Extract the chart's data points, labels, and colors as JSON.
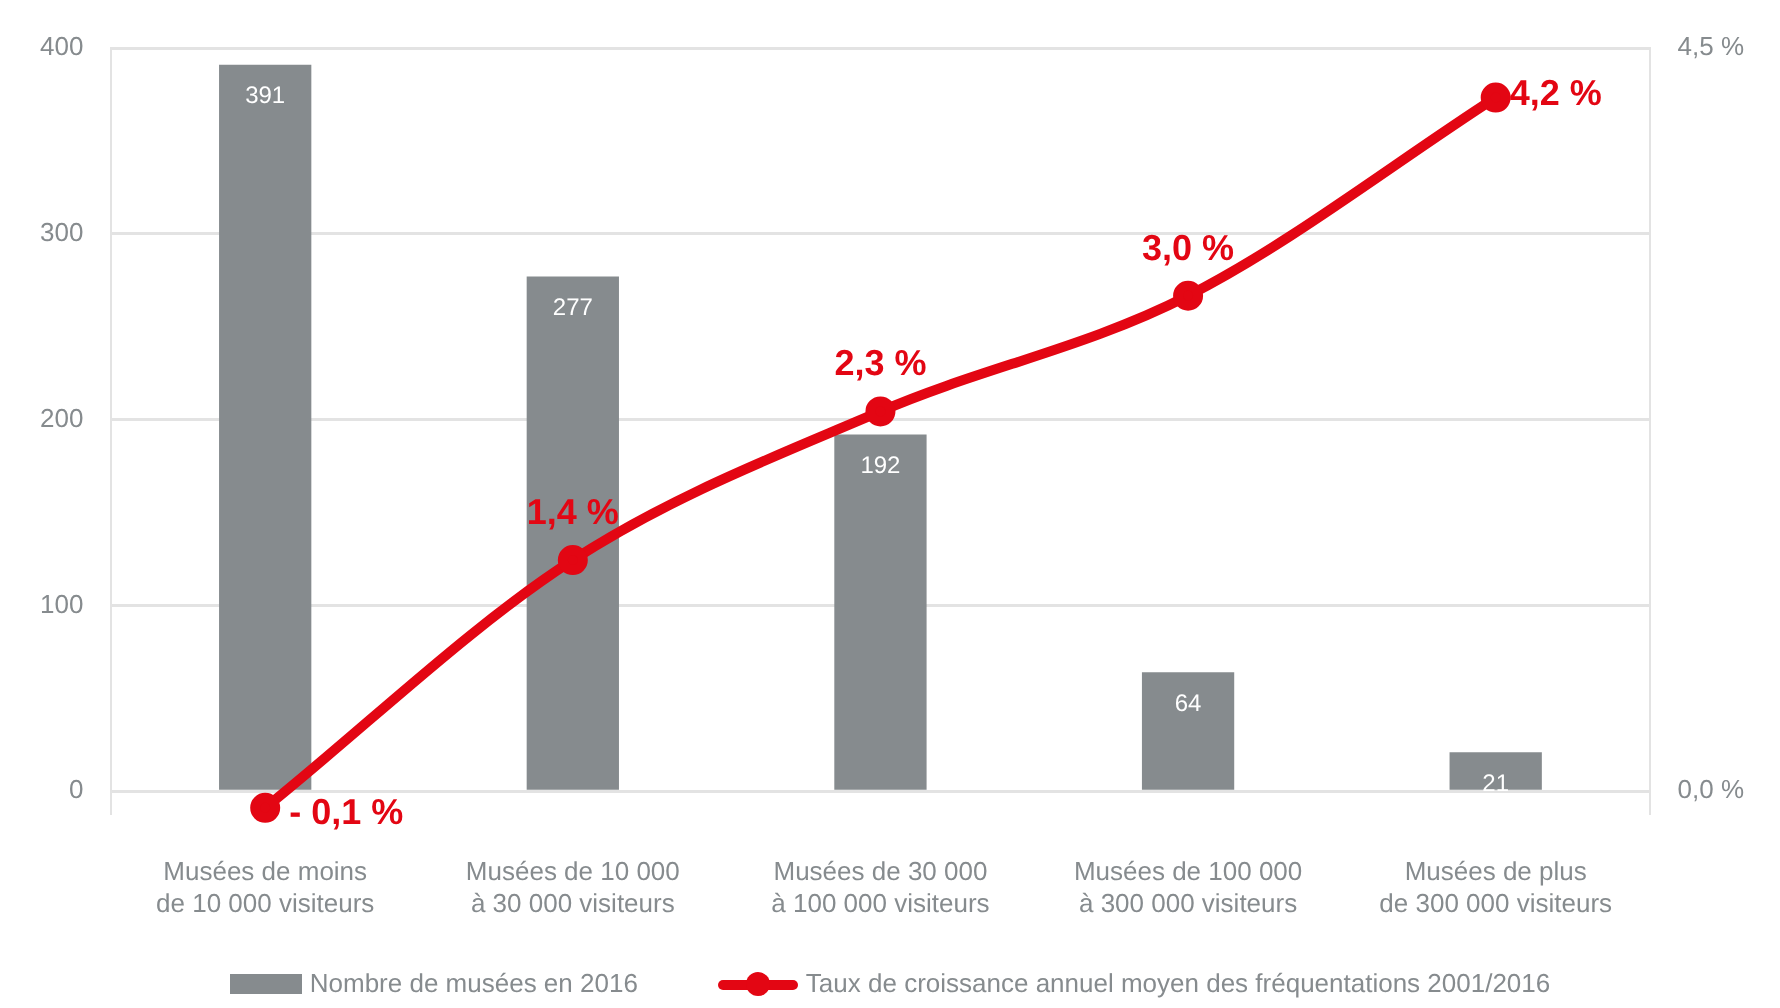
{
  "chart_data": {
    "type": "bar",
    "categories": [
      "Musées de moins\nde 10 000 visiteurs",
      "Musées de 10 000\nà 30 000 visiteurs",
      "Musées de 30 000\nà 100 000 visiteurs",
      "Musées de 100 000\nà 300 000 visiteurs",
      "Musées de plus\nde 300 000 visiteurs"
    ],
    "series": [
      {
        "name": "Nombre de musées en 2016",
        "color": "#868b8e",
        "values": [
          391,
          277,
          192,
          64,
          21
        ],
        "value_labels": [
          "391",
          "277",
          "192",
          "64",
          "21"
        ]
      },
      {
        "name": "Taux de croissance annuel moyen des fréquentations 2001/2016",
        "type": "line",
        "axis": "y2",
        "color": "#e30613",
        "marker": "circle",
        "values": [
          -0.1,
          1.4,
          2.3,
          3.0,
          4.2
        ],
        "value_labels": [
          "- 0,1 %",
          "1,4 %",
          "2,3 %",
          "3,0 %",
          "4,2 %"
        ]
      }
    ],
    "ylim": [
      -12,
      400
    ],
    "yticks": [
      0,
      100,
      200,
      300,
      400
    ],
    "y2lim": [
      -0.135,
      4.5
    ],
    "y2ticks": [
      {
        "value": 0,
        "label": "0,0 %"
      },
      {
        "value": 4.5,
        "label": "4,5 %"
      }
    ],
    "grid": "y",
    "legend": "bottom"
  }
}
